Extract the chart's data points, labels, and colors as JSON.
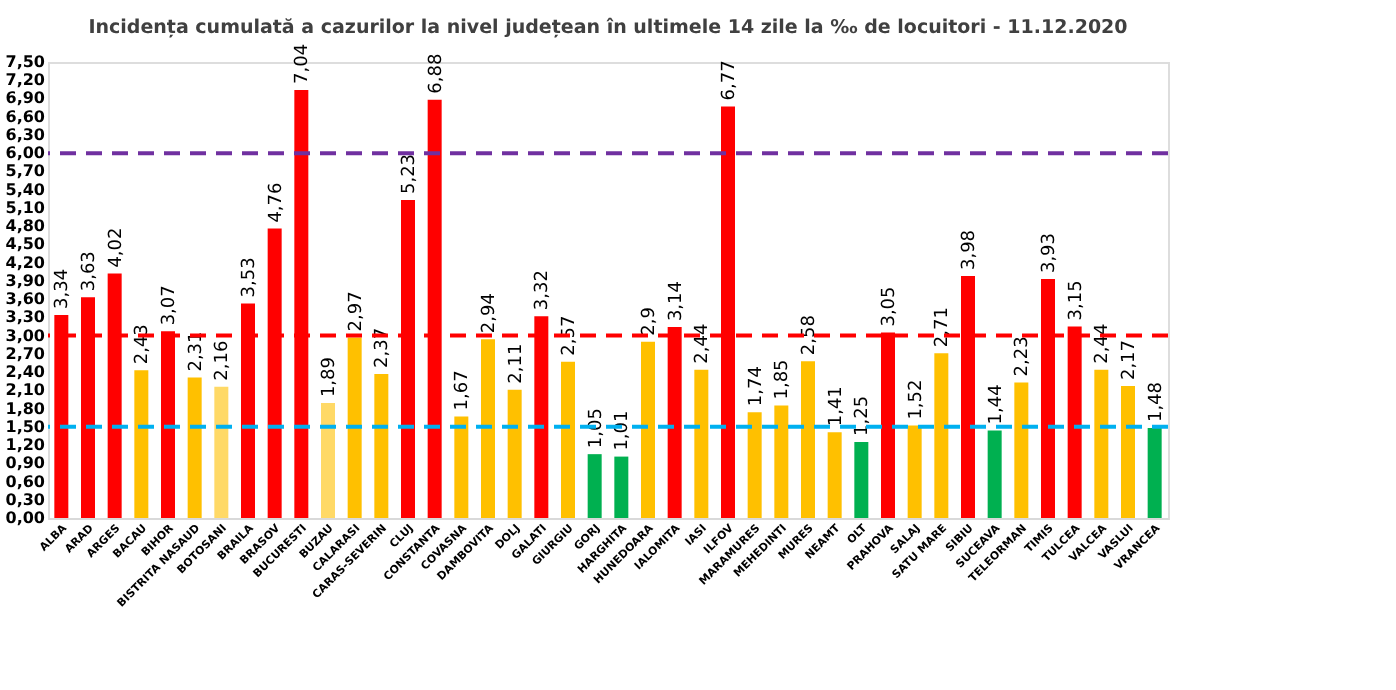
{
  "chart_data": {
    "type": "bar",
    "title": "Incidența cumulată a cazurilor la nivel județean în ultimele 14 zile la ‰ de locuitori - 11.12.2020",
    "categories": [
      "ALBA",
      "ARAD",
      "ARGES",
      "BACAU",
      "BIHOR",
      "BISTRITA NASAUD",
      "BOTOSANI",
      "BRAILA",
      "BRASOV",
      "BUCURESTI",
      "BUZAU",
      "CALARASI",
      "CARAS-SEVERIN",
      "CLUJ",
      "CONSTANTA",
      "COVASNA",
      "DAMBOVITA",
      "DOLJ",
      "GALATI",
      "GIURGIU",
      "GORJ",
      "HARGHITA",
      "HUNEDOARA",
      "IALOMITA",
      "IASI",
      "ILFOV",
      "MARAMURES",
      "MEHEDINTI",
      "MURES",
      "NEAMT",
      "OLT",
      "PRAHOVA",
      "SALAJ",
      "SATU MARE",
      "SIBIU",
      "SUCEAVA",
      "TELEORMAN",
      "TIMIS",
      "TULCEA",
      "VALCEA",
      "VASLUI",
      "VRANCEA"
    ],
    "values": [
      3.34,
      3.63,
      4.02,
      2.43,
      3.07,
      2.31,
      2.16,
      3.53,
      4.76,
      7.04,
      1.89,
      2.97,
      2.37,
      5.23,
      6.88,
      1.67,
      2.94,
      2.11,
      3.32,
      2.57,
      1.05,
      1.01,
      2.9,
      3.14,
      2.44,
      6.77,
      1.74,
      1.85,
      2.58,
      1.41,
      1.25,
      3.05,
      1.52,
      2.71,
      3.98,
      1.44,
      2.23,
      3.93,
      3.15,
      2.44,
      2.17,
      1.48
    ],
    "value_labels": [
      "3,34",
      "3,63",
      "4,02",
      "2,43",
      "3,07",
      "2,31",
      "2,16",
      "3,53",
      "4,76",
      "7,04",
      "1,89",
      "2,97",
      "2,37",
      "5,23",
      "6,88",
      "1,67",
      "2,94",
      "2,11",
      "3,32",
      "2,57",
      "1,05",
      "1,01",
      "2,9",
      "3,14",
      "2,44",
      "6,77",
      "1,74",
      "1,85",
      "2,58",
      "1,41",
      "1,25",
      "3,05",
      "1,52",
      "2,71",
      "3,98",
      "1,44",
      "2,23",
      "3,93",
      "3,15",
      "2,44",
      "2,17",
      "1,48"
    ],
    "colors": [
      "#ff0000",
      "#ff0000",
      "#ff0000",
      "#ffc000",
      "#ff0000",
      "#ffc000",
      "#ffd966",
      "#ff0000",
      "#ff0000",
      "#ff0000",
      "#ffd966",
      "#ffc000",
      "#ffc000",
      "#ff0000",
      "#ff0000",
      "#ffc000",
      "#ffc000",
      "#ffc000",
      "#ff0000",
      "#ffc000",
      "#00b050",
      "#00b050",
      "#ffc000",
      "#ff0000",
      "#ffc000",
      "#ff0000",
      "#ffc000",
      "#ffc000",
      "#ffc000",
      "#ffc000",
      "#00b050",
      "#ff0000",
      "#ffc000",
      "#ffc000",
      "#ff0000",
      "#00b050",
      "#ffc000",
      "#ff0000",
      "#ff0000",
      "#ffc000",
      "#ffc000",
      "#00b050"
    ],
    "ylim": [
      0,
      7.5
    ],
    "yticks": [
      {
        "value": 0,
        "label": "0,00"
      },
      {
        "value": 0.3,
        "label": "0,30"
      },
      {
        "value": 0.6,
        "label": "0,60"
      },
      {
        "value": 0.9,
        "label": "0,90"
      },
      {
        "value": 1.2,
        "label": "1,20"
      },
      {
        "value": 1.5,
        "label": "1,50"
      },
      {
        "value": 1.8,
        "label": "1,80"
      },
      {
        "value": 2.1,
        "label": "2,10"
      },
      {
        "value": 2.4,
        "label": "2,40"
      },
      {
        "value": 2.7,
        "label": "2,70"
      },
      {
        "value": 3.0,
        "label": "3,00"
      },
      {
        "value": 3.3,
        "label": "3,30"
      },
      {
        "value": 3.6,
        "label": "3,60"
      },
      {
        "value": 3.9,
        "label": "3,90"
      },
      {
        "value": 4.2,
        "label": "4,20"
      },
      {
        "value": 4.5,
        "label": "4,50"
      },
      {
        "value": 4.8,
        "label": "4,80"
      },
      {
        "value": 5.1,
        "label": "5,10"
      },
      {
        "value": 5.4,
        "label": "5,40"
      },
      {
        "value": 5.7,
        "label": "5,70"
      },
      {
        "value": 6.0,
        "label": "6,00"
      },
      {
        "value": 6.3,
        "label": "6,30"
      },
      {
        "value": 6.6,
        "label": "6,60"
      },
      {
        "value": 6.9,
        "label": "6,90"
      },
      {
        "value": 7.2,
        "label": "7,20"
      },
      {
        "value": 7.5,
        "label": "7,50"
      }
    ],
    "ref_lines": [
      {
        "axis": "y",
        "value": 6,
        "color": "#7030a0",
        "line_style": "dashed"
      },
      {
        "axis": "y",
        "value": 3,
        "color": "#ff0000",
        "line_style": "dashed"
      },
      {
        "axis": "y",
        "value": 1.5,
        "color": "#00b0f0",
        "line_style": "dashed"
      }
    ],
    "grid": false,
    "legend": false
  }
}
